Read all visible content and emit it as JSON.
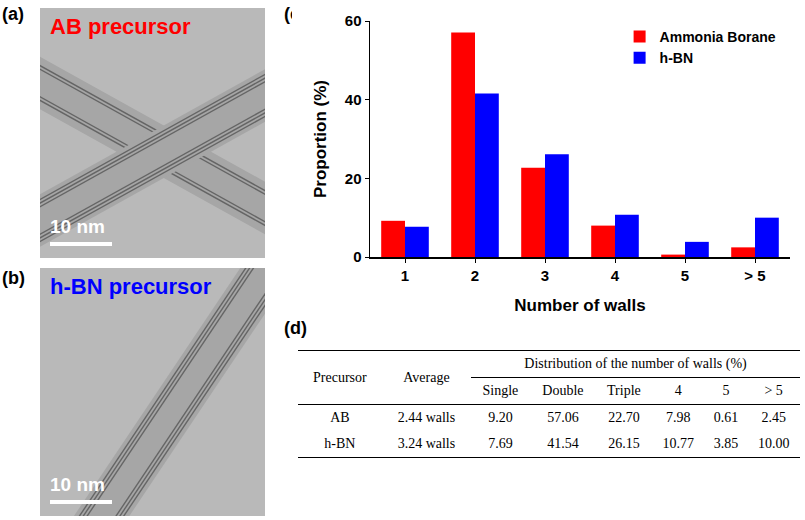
{
  "letters": [
    "(a)",
    "(b)",
    "(c)",
    "(d)"
  ],
  "images": [
    {
      "label": "AB precursor",
      "color": "#ff0000",
      "scale_bar": "10 nm"
    },
    {
      "label": "h-BN precursor",
      "color": "#0000ff",
      "scale_bar": "10 nm"
    }
  ],
  "chart_data": {
    "type": "bar",
    "categories": [
      "1",
      "2",
      "3",
      "4",
      "5",
      "> 5"
    ],
    "series": [
      {
        "name": "Ammonia Borane",
        "color": "#ff0000",
        "values": [
          9.2,
          57.06,
          22.7,
          7.98,
          0.61,
          2.45
        ]
      },
      {
        "name": "h-BN",
        "color": "#0000ff",
        "values": [
          7.69,
          41.54,
          26.15,
          10.77,
          3.85,
          10.0
        ]
      }
    ],
    "x_label": "Number of walls",
    "y_label": "Proportion (%)",
    "ylim": [
      0,
      60
    ],
    "yticks": [
      0,
      20,
      40,
      60
    ],
    "grid": false,
    "legend": "top right"
  },
  "table": {
    "header": {
      "precursor": "Precursor",
      "average": "Average",
      "group": "Distribution of the number of walls (%)",
      "columns": [
        "Single",
        "Double",
        "Triple",
        "4",
        "5",
        "> 5"
      ]
    },
    "rows": [
      [
        "AB",
        "2.44 walls",
        "9.20",
        "57.06",
        "22.70",
        "7.98",
        "0.61",
        "2.45"
      ],
      [
        "h-BN",
        "3.24 walls",
        "7.69",
        "41.54",
        "26.15",
        "10.77",
        "3.85",
        "10.00"
      ]
    ]
  }
}
